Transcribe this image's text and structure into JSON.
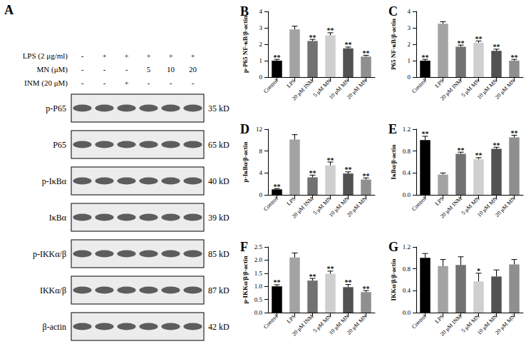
{
  "blot": {
    "title": "A",
    "treatments": [
      {
        "label": "LPS (2 μg/ml)",
        "lanes": [
          "-",
          "+",
          "+",
          "+",
          "+",
          "+"
        ]
      },
      {
        "label": "MN (μM)",
        "lanes": [
          "-",
          "-",
          "-",
          "5",
          "10",
          "20"
        ]
      },
      {
        "label": "INM (20 μM)",
        "lanes": [
          "-",
          "-",
          "+",
          "-",
          "-",
          "-"
        ]
      }
    ],
    "bands": [
      {
        "label": "p-P65",
        "size": "35 kD"
      },
      {
        "label": "P65",
        "size": "65 kD"
      },
      {
        "label": "p-IκBα",
        "size": "40 kD"
      },
      {
        "label": "IκBα",
        "size": "39 kD"
      },
      {
        "label": "p-IKKα/β",
        "size": "85 kD"
      },
      {
        "label": "IKKα/β",
        "size": "87 kD"
      },
      {
        "label": "β-actin",
        "size": "42 kD"
      }
    ]
  },
  "chart_data": [
    {
      "type": "bar",
      "title": "B",
      "y_label": "p-P65 NF-κB/β-actin",
      "categories": [
        "Control",
        "LPS",
        "20 μM INM",
        "5 μM MN",
        "10 μM MN",
        "20 μM MN"
      ],
      "values": [
        1.0,
        2.9,
        2.2,
        2.55,
        1.75,
        1.25
      ],
      "errors": [
        0.08,
        0.2,
        0.1,
        0.15,
        0.08,
        0.08
      ],
      "significance": [
        "**",
        null,
        "**",
        "**",
        "**",
        "**"
      ],
      "colors": [
        "#000000",
        "#a3a3a3",
        "#727272",
        "#cfcfcf",
        "#525252",
        "#8f8f8f"
      ],
      "ylim": [
        0,
        4
      ],
      "yticks": [
        0,
        1,
        2,
        3,
        4
      ],
      "grid": false
    },
    {
      "type": "bar",
      "title": "C",
      "y_label": "P65 NF-κB/β-actin",
      "categories": [
        "Control",
        "LPS",
        "20 μM INM",
        "5 μM MN",
        "10 μM MN",
        "20 μM MN"
      ],
      "values": [
        1.0,
        3.25,
        1.85,
        2.1,
        1.6,
        1.0
      ],
      "errors": [
        0.08,
        0.12,
        0.1,
        0.1,
        0.1,
        0.08
      ],
      "significance": [
        "**",
        null,
        "**",
        "**",
        "**",
        "**"
      ],
      "colors": [
        "#000000",
        "#a3a3a3",
        "#727272",
        "#cfcfcf",
        "#525252",
        "#8f8f8f"
      ],
      "ylim": [
        0,
        4
      ],
      "yticks": [
        0,
        1,
        2,
        3,
        4
      ],
      "grid": false
    },
    {
      "type": "bar",
      "title": "D",
      "y_label": "p-IκBα/β-actin",
      "categories": [
        "Control",
        "LPS",
        "20 μM INM",
        "5 μM MN",
        "10 μM MN",
        "20 μM MN"
      ],
      "values": [
        1.0,
        10.1,
        3.2,
        5.4,
        3.9,
        2.8
      ],
      "errors": [
        0.15,
        0.9,
        0.4,
        0.6,
        0.3,
        0.3
      ],
      "significance": [
        "**",
        null,
        "**",
        "**",
        "**",
        "**"
      ],
      "colors": [
        "#000000",
        "#a3a3a3",
        "#727272",
        "#cfcfcf",
        "#525252",
        "#8f8f8f"
      ],
      "ylim": [
        0,
        12
      ],
      "yticks": [
        0,
        4,
        8,
        12
      ],
      "grid": false
    },
    {
      "type": "bar",
      "title": "E",
      "y_label": "IκBα/β-actin",
      "categories": [
        "Control",
        "LPS",
        "20 μM INM",
        "5 μM MN",
        "10 μM MN",
        "20 μM MN"
      ],
      "values": [
        1.0,
        0.37,
        0.75,
        0.65,
        0.84,
        1.05
      ],
      "errors": [
        0.07,
        0.03,
        0.03,
        0.03,
        0.03,
        0.04
      ],
      "significance": [
        "**",
        null,
        "**",
        "**",
        "**",
        "**"
      ],
      "colors": [
        "#000000",
        "#a3a3a3",
        "#727272",
        "#cfcfcf",
        "#525252",
        "#8f8f8f"
      ],
      "ylim": [
        0,
        1.2
      ],
      "yticks": [
        {
          "value": 0,
          "label": "0.0"
        },
        0.4,
        0.8,
        1.2
      ],
      "grid": false
    },
    {
      "type": "bar",
      "title": "F",
      "y_label": "p-IKKα/β/β-actin",
      "categories": [
        "Control",
        "LPS",
        "20 μM INM",
        "5 μM MN",
        "10 μM MN",
        "20 μM MN"
      ],
      "values": [
        1.0,
        2.1,
        1.22,
        1.48,
        0.97,
        0.78
      ],
      "errors": [
        0.06,
        0.17,
        0.08,
        0.1,
        0.1,
        0.06
      ],
      "significance": [
        "**",
        null,
        "**",
        "**",
        "**",
        "**"
      ],
      "colors": [
        "#000000",
        "#a3a3a3",
        "#727272",
        "#cfcfcf",
        "#525252",
        "#8f8f8f"
      ],
      "ylim": [
        0,
        2.5
      ],
      "yticks": [
        {
          "value": 0,
          "label": "0.0"
        },
        0.5,
        {
          "value": 1,
          "label": "1.0"
        },
        1.5,
        {
          "value": 2,
          "label": "2.0"
        },
        2.5
      ],
      "grid": false
    },
    {
      "type": "bar",
      "title": "G",
      "y_label": "IKKα/β/β-actin",
      "categories": [
        "Control",
        "LPS",
        "20 μM INM",
        "5 μM MN",
        "10 μM MN",
        "20 μM MN"
      ],
      "values": [
        1.0,
        0.85,
        0.87,
        0.57,
        0.66,
        0.88
      ],
      "errors": [
        0.08,
        0.12,
        0.15,
        0.15,
        0.12,
        0.09
      ],
      "significance": [
        null,
        null,
        null,
        "*",
        null,
        null
      ],
      "colors": [
        "#000000",
        "#a3a3a3",
        "#727272",
        "#cfcfcf",
        "#525252",
        "#8f8f8f"
      ],
      "ylim": [
        0,
        1.2
      ],
      "yticks": [
        {
          "value": 0,
          "label": "0.0"
        },
        0.4,
        0.8,
        1.2
      ],
      "grid": false
    }
  ]
}
